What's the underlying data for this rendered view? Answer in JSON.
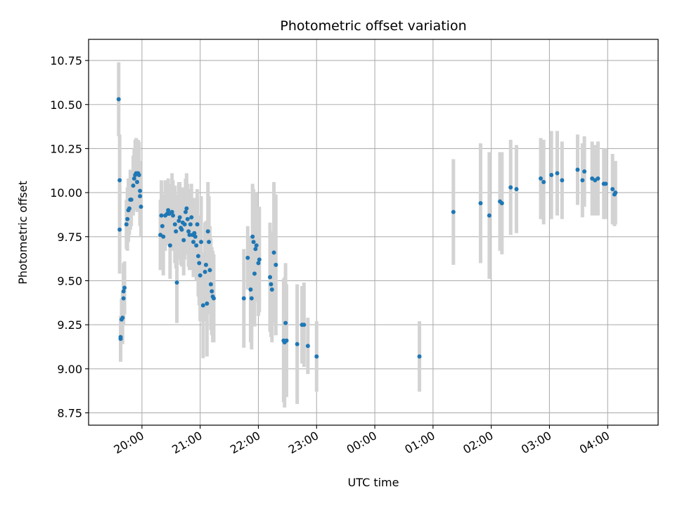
{
  "chart_data": {
    "type": "scatter",
    "title": "Photometric offset variation",
    "xlabel": "UTC time",
    "ylabel": "Photometric offset",
    "xlim": [
      "19:05",
      "04:52"
    ],
    "ylim": [
      8.68,
      10.87
    ],
    "grid": true,
    "marker_color": "#1f77b4",
    "errorbar_color": "#d3d3d3",
    "x_ticks": [
      "20:00",
      "21:00",
      "22:00",
      "23:00",
      "00:00",
      "01:00",
      "02:00",
      "03:00",
      "04:00"
    ],
    "y_ticks": [
      "8.75",
      "9.00",
      "9.25",
      "9.50",
      "9.75",
      "10.00",
      "10.25",
      "10.50",
      "10.75"
    ],
    "points": [
      {
        "t": "19:36",
        "y": 10.53,
        "err": 0.21
      },
      {
        "t": "19:37",
        "y": 10.07,
        "err": 0.26
      },
      {
        "t": "19:37",
        "y": 9.79,
        "err": 0.25
      },
      {
        "t": "19:38",
        "y": 9.18,
        "err": 0.12
      },
      {
        "t": "19:38",
        "y": 9.17,
        "err": 0.13
      },
      {
        "t": "19:39",
        "y": 9.28,
        "err": 0.12
      },
      {
        "t": "19:40",
        "y": 9.29,
        "err": 0.15
      },
      {
        "t": "19:41",
        "y": 9.4,
        "err": 0.15
      },
      {
        "t": "19:41",
        "y": 9.44,
        "err": 0.16
      },
      {
        "t": "19:42",
        "y": 9.46,
        "err": 0.15
      },
      {
        "t": "19:44",
        "y": 9.82,
        "err": 0.14
      },
      {
        "t": "19:45",
        "y": 9.85,
        "err": 0.18
      },
      {
        "t": "19:46",
        "y": 9.9,
        "err": 0.18
      },
      {
        "t": "19:47",
        "y": 9.91,
        "err": 0.15
      },
      {
        "t": "19:48",
        "y": 9.96,
        "err": 0.17
      },
      {
        "t": "19:49",
        "y": 9.96,
        "err": 0.15
      },
      {
        "t": "19:51",
        "y": 10.04,
        "err": 0.17
      },
      {
        "t": "19:52",
        "y": 10.08,
        "err": 0.17
      },
      {
        "t": "19:53",
        "y": 10.1,
        "err": 0.2
      },
      {
        "t": "19:54",
        "y": 10.11,
        "err": 0.2
      },
      {
        "t": "19:55",
        "y": 10.06,
        "err": 0.17
      },
      {
        "t": "19:56",
        "y": 10.11,
        "err": 0.19
      },
      {
        "t": "19:57",
        "y": 10.1,
        "err": 0.19
      },
      {
        "t": "19:58",
        "y": 10.01,
        "err": 0.17
      },
      {
        "t": "19:58",
        "y": 9.98,
        "err": 0.17
      },
      {
        "t": "19:59",
        "y": 9.92,
        "err": 0.17
      },
      {
        "t": "20:19",
        "y": 9.76,
        "err": 0.2
      },
      {
        "t": "20:20",
        "y": 9.87,
        "err": 0.2
      },
      {
        "t": "20:21",
        "y": 9.81,
        "err": 0.18
      },
      {
        "t": "20:22",
        "y": 9.75,
        "err": 0.22
      },
      {
        "t": "20:24",
        "y": 9.87,
        "err": 0.2
      },
      {
        "t": "20:26",
        "y": 9.88,
        "err": 0.18
      },
      {
        "t": "20:27",
        "y": 9.9,
        "err": 0.18
      },
      {
        "t": "20:28",
        "y": 9.88,
        "err": 0.17
      },
      {
        "t": "20:29",
        "y": 9.7,
        "err": 0.19
      },
      {
        "t": "20:31",
        "y": 9.89,
        "err": 0.22
      },
      {
        "t": "20:32",
        "y": 9.87,
        "err": 0.2
      },
      {
        "t": "20:34",
        "y": 9.82,
        "err": 0.22
      },
      {
        "t": "20:35",
        "y": 9.78,
        "err": 0.21
      },
      {
        "t": "20:36",
        "y": 9.49,
        "err": 0.23
      },
      {
        "t": "20:38",
        "y": 9.84,
        "err": 0.22
      },
      {
        "t": "20:39",
        "y": 9.86,
        "err": 0.2
      },
      {
        "t": "20:40",
        "y": 9.8,
        "err": 0.21
      },
      {
        "t": "20:41",
        "y": 9.79,
        "err": 0.21
      },
      {
        "t": "20:42",
        "y": 9.83,
        "err": 0.2
      },
      {
        "t": "20:43",
        "y": 9.73,
        "err": 0.2
      },
      {
        "t": "20:44",
        "y": 9.82,
        "err": 0.2
      },
      {
        "t": "20:45",
        "y": 9.89,
        "err": 0.19
      },
      {
        "t": "20:46",
        "y": 9.91,
        "err": 0.2
      },
      {
        "t": "20:47",
        "y": 9.85,
        "err": 0.2
      },
      {
        "t": "20:48",
        "y": 9.78,
        "err": 0.2
      },
      {
        "t": "20:49",
        "y": 9.76,
        "err": 0.2
      },
      {
        "t": "20:50",
        "y": 9.82,
        "err": 0.2
      },
      {
        "t": "20:51",
        "y": 9.86,
        "err": 0.19
      },
      {
        "t": "20:52",
        "y": 9.76,
        "err": 0.2
      },
      {
        "t": "20:53",
        "y": 9.72,
        "err": 0.2
      },
      {
        "t": "20:54",
        "y": 9.77,
        "err": 0.2
      },
      {
        "t": "20:55",
        "y": 9.75,
        "err": 0.2
      },
      {
        "t": "20:56",
        "y": 9.7,
        "err": 0.2
      },
      {
        "t": "20:57",
        "y": 9.82,
        "err": 0.2
      },
      {
        "t": "20:58",
        "y": 9.64,
        "err": 0.23
      },
      {
        "t": "20:59",
        "y": 9.6,
        "err": 0.24
      },
      {
        "t": "21:00",
        "y": 9.53,
        "err": 0.26
      },
      {
        "t": "21:01",
        "y": 9.72,
        "err": 0.26
      },
      {
        "t": "21:03",
        "y": 9.36,
        "err": 0.3
      },
      {
        "t": "21:05",
        "y": 9.55,
        "err": 0.28
      },
      {
        "t": "21:06",
        "y": 9.59,
        "err": 0.25
      },
      {
        "t": "21:07",
        "y": 9.37,
        "err": 0.3
      },
      {
        "t": "21:08",
        "y": 9.78,
        "err": 0.28
      },
      {
        "t": "21:09",
        "y": 9.72,
        "err": 0.26
      },
      {
        "t": "21:10",
        "y": 9.56,
        "err": 0.25
      },
      {
        "t": "21:11",
        "y": 9.48,
        "err": 0.26
      },
      {
        "t": "21:12",
        "y": 9.44,
        "err": 0.25
      },
      {
        "t": "21:13",
        "y": 9.41,
        "err": 0.26
      },
      {
        "t": "21:14",
        "y": 9.4,
        "err": 0.25
      },
      {
        "t": "21:45",
        "y": 9.4,
        "err": 0.28
      },
      {
        "t": "21:49",
        "y": 9.63,
        "err": 0.18
      },
      {
        "t": "21:52",
        "y": 9.45,
        "err": 0.3
      },
      {
        "t": "21:53",
        "y": 9.4,
        "err": 0.29
      },
      {
        "t": "21:54",
        "y": 9.75,
        "err": 0.3
      },
      {
        "t": "21:55",
        "y": 9.72,
        "err": 0.3
      },
      {
        "t": "21:56",
        "y": 9.54,
        "err": 0.3
      },
      {
        "t": "21:57",
        "y": 9.68,
        "err": 0.3
      },
      {
        "t": "21:58",
        "y": 9.7,
        "err": 0.3
      },
      {
        "t": "22:00",
        "y": 9.6,
        "err": 0.3
      },
      {
        "t": "22:01",
        "y": 9.62,
        "err": 0.3
      },
      {
        "t": "22:12",
        "y": 9.52,
        "err": 0.31
      },
      {
        "t": "22:13",
        "y": 9.48,
        "err": 0.3
      },
      {
        "t": "22:14",
        "y": 9.45,
        "err": 0.3
      },
      {
        "t": "22:16",
        "y": 9.66,
        "err": 0.4
      },
      {
        "t": "22:18",
        "y": 9.59,
        "err": 0.4
      },
      {
        "t": "22:26",
        "y": 9.16,
        "err": 0.35
      },
      {
        "t": "22:27",
        "y": 9.15,
        "err": 0.37
      },
      {
        "t": "22:28",
        "y": 9.26,
        "err": 0.34
      },
      {
        "t": "22:29",
        "y": 9.16,
        "err": 0.32
      },
      {
        "t": "22:40",
        "y": 9.14,
        "err": 0.34
      },
      {
        "t": "22:45",
        "y": 9.25,
        "err": 0.22
      },
      {
        "t": "22:47",
        "y": 9.25,
        "err": 0.24
      },
      {
        "t": "22:51",
        "y": 9.13,
        "err": 0.16
      },
      {
        "t": "23:00",
        "y": 9.07,
        "err": 0.2
      },
      {
        "t": "00:46",
        "y": 9.07,
        "err": 0.2
      },
      {
        "t": "01:21",
        "y": 9.89,
        "err": 0.3
      },
      {
        "t": "01:49",
        "y": 9.94,
        "err": 0.34
      },
      {
        "t": "01:58",
        "y": 9.87,
        "err": 0.36
      },
      {
        "t": "02:09",
        "y": 9.95,
        "err": 0.28
      },
      {
        "t": "02:11",
        "y": 9.94,
        "err": 0.29
      },
      {
        "t": "02:20",
        "y": 10.03,
        "err": 0.27
      },
      {
        "t": "02:26",
        "y": 10.02,
        "err": 0.25
      },
      {
        "t": "02:51",
        "y": 10.08,
        "err": 0.23
      },
      {
        "t": "02:54",
        "y": 10.06,
        "err": 0.24
      },
      {
        "t": "03:02",
        "y": 10.1,
        "err": 0.25
      },
      {
        "t": "03:08",
        "y": 10.11,
        "err": 0.24
      },
      {
        "t": "03:13",
        "y": 10.07,
        "err": 0.22
      },
      {
        "t": "03:29",
        "y": 10.13,
        "err": 0.2
      },
      {
        "t": "03:34",
        "y": 10.07,
        "err": 0.21
      },
      {
        "t": "03:36",
        "y": 10.12,
        "err": 0.2
      },
      {
        "t": "03:44",
        "y": 10.08,
        "err": 0.21
      },
      {
        "t": "03:47",
        "y": 10.07,
        "err": 0.2
      },
      {
        "t": "03:50",
        "y": 10.08,
        "err": 0.21
      },
      {
        "t": "03:56",
        "y": 10.05,
        "err": 0.2
      },
      {
        "t": "03:58",
        "y": 10.05,
        "err": 0.2
      },
      {
        "t": "04:05",
        "y": 10.02,
        "err": 0.2
      },
      {
        "t": "04:07",
        "y": 9.99,
        "err": 0.18
      },
      {
        "t": "04:08",
        "y": 10.0,
        "err": 0.18
      }
    ]
  }
}
